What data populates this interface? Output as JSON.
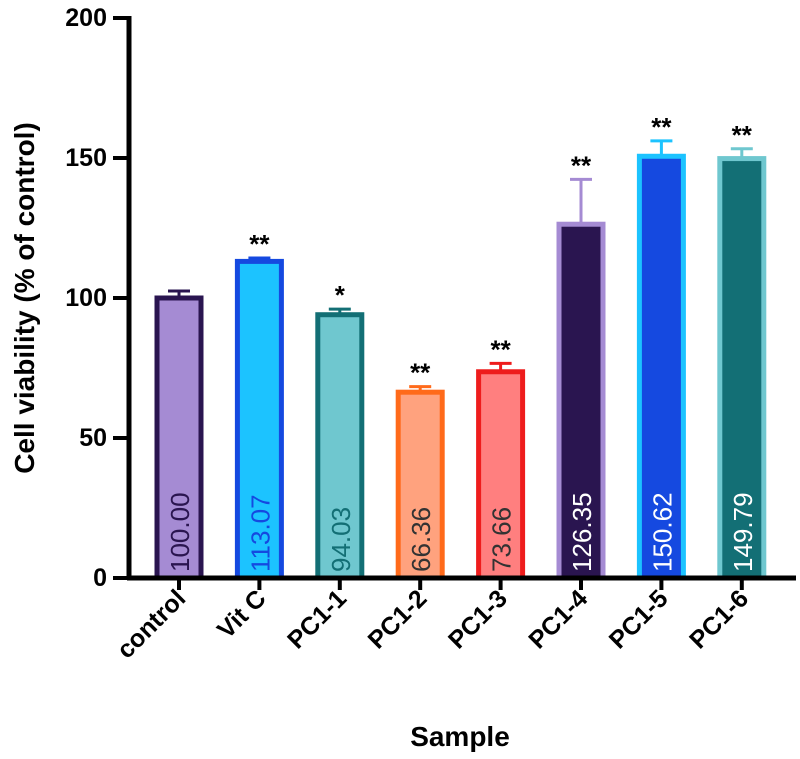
{
  "chart_data": {
    "type": "bar",
    "title": "",
    "xlabel": "Sample",
    "ylabel": "Cell viability (% of control)",
    "ylim": [
      0,
      200
    ],
    "yticks": [
      0,
      50,
      100,
      150,
      200
    ],
    "categories": [
      "control",
      "Vit C",
      "PC1-1",
      "PC1-2",
      "PC1-3",
      "PC1-4",
      "PC1-5",
      "PC1-6"
    ],
    "values": [
      100.0,
      113.07,
      94.03,
      66.36,
      73.66,
      126.35,
      150.62,
      149.79
    ],
    "value_labels": [
      "100.00",
      "113.07",
      "94.03",
      "66.36",
      "73.66",
      "126.35",
      "150.62",
      "149.79"
    ],
    "error_upper": [
      2.5,
      1.2,
      2.0,
      2.0,
      3.0,
      16.0,
      5.5,
      3.5
    ],
    "significance": [
      "",
      "**",
      "*",
      "**",
      "**",
      "**",
      "**",
      "**"
    ],
    "bar_fill": [
      "#a58bd3",
      "#1cc3ff",
      "#6fc7cf",
      "#ffa27e",
      "#ff7f7f",
      "#2a1550",
      "#1549e0",
      "#136f75"
    ],
    "bar_edge": [
      "#2a1550",
      "#1549e0",
      "#136f75",
      "#ff6a1a",
      "#ee1c1c",
      "#a58bd3",
      "#1cc3ff",
      "#6fc7cf"
    ],
    "value_label_color": [
      "#2a1550",
      "#1549e0",
      "#136f75",
      "#333333",
      "#333333",
      "#ffffff",
      "#ffffff",
      "#ffffff"
    ],
    "grid": false,
    "legend": "none"
  }
}
